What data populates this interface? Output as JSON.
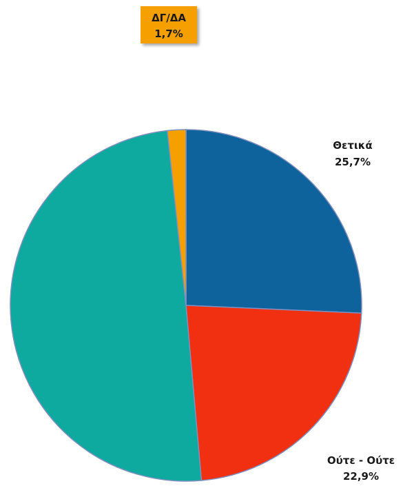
{
  "chart_data": {
    "type": "pie",
    "title": "",
    "start_angle_deg": 0,
    "direction": "clockwise",
    "slices": [
      {
        "label": "Θετικά",
        "value": 25.7,
        "value_label": "25,7%",
        "color": "#0e639c"
      },
      {
        "label": "Ούτε - Ούτε",
        "value": 22.9,
        "value_label": "22,9%",
        "color": "#f03010"
      },
      {
        "label": "",
        "value": 49.7,
        "value_label": "",
        "color": "#0ea99f"
      },
      {
        "label": "ΔΓ/ΔΑ",
        "value": 1.7,
        "value_label": "1,7%",
        "color": "#f5a000",
        "label_box": true
      }
    ],
    "legend": "none",
    "slice_border_color": "#7f8fbf"
  }
}
